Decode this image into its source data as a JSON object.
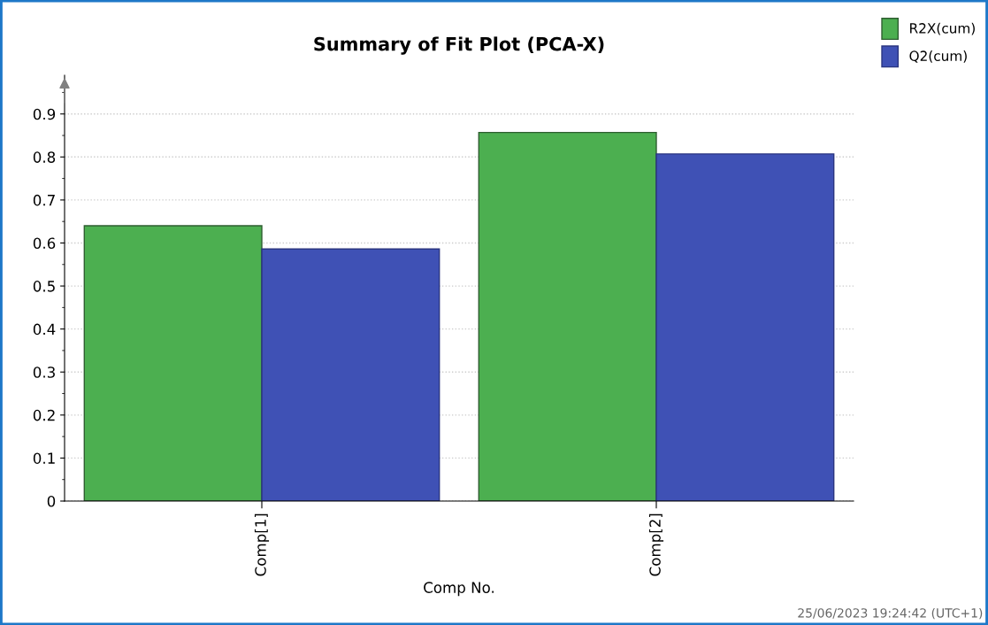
{
  "chart_data": {
    "type": "bar",
    "title": "Summary of Fit Plot (PCA-X)",
    "xlabel": "Comp No.",
    "categories": [
      "Comp[1]",
      "Comp[2]"
    ],
    "series": [
      {
        "name": "R2X(cum)",
        "color": "#4caf50",
        "values": [
          0.64,
          0.857
        ]
      },
      {
        "name": "Q2(cum)",
        "color": "#3f51b5",
        "values": [
          0.586,
          0.807
        ]
      }
    ],
    "ylim": [
      0,
      0.99
    ],
    "yticks": [
      0,
      0.1,
      0.2,
      0.3,
      0.4,
      0.5,
      0.6,
      0.7,
      0.8,
      0.9
    ],
    "grid": "y",
    "legend": "top right",
    "annotations": [
      "25/06/2023 19:24:42 (UTC+1)"
    ]
  }
}
